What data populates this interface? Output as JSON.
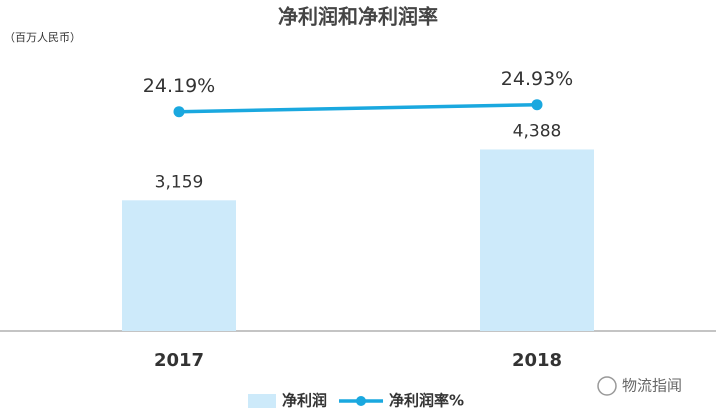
{
  "chart_data": {
    "type": "bar-line",
    "title": "净利润和净利润率",
    "unit_label": "（百万人民币）",
    "categories": [
      "2017",
      "2018"
    ],
    "series": [
      {
        "name": "净利润",
        "type": "bar",
        "color": "#cdeafa",
        "values": [
          3159,
          4388
        ],
        "value_labels": [
          "3,159",
          "4,388"
        ]
      },
      {
        "name": "净利润率%",
        "type": "line",
        "axis": "y2",
        "color": "#1aa8df",
        "values": [
          24.19,
          24.93
        ],
        "value_labels": [
          "24.19%",
          "24.93%"
        ]
      }
    ],
    "ylim": [
      0,
      8000
    ],
    "y2lim": [
      1,
      36
    ],
    "legend": "bottom",
    "grid": false
  },
  "watermark": "物流指闻"
}
